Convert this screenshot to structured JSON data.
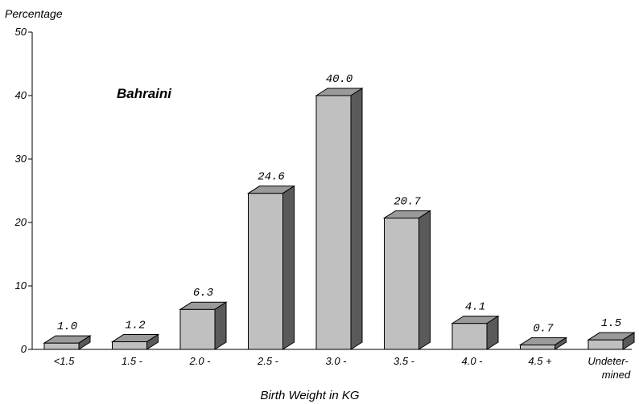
{
  "chart_data": {
    "type": "bar",
    "title": "",
    "annotation": "Bahraini",
    "ylabel": "Percentage",
    "xlabel": "Birth Weight in KG",
    "ylim": [
      0,
      50
    ],
    "yticks": [
      "0",
      "10",
      "20",
      "30",
      "40",
      "50"
    ],
    "categories": [
      "<1.5",
      "1.5 -",
      "2.0 -",
      "2.5 -",
      "3.0 -",
      "3.5 -",
      "4.0 -",
      "4.5 +",
      "Undeter-\nmined"
    ],
    "values": [
      1.0,
      1.2,
      6.3,
      24.6,
      40.0,
      20.7,
      4.1,
      0.7,
      1.5
    ],
    "data_labels": [
      "1.0",
      "1.2",
      "6.3",
      "24.6",
      "40.0",
      "20.7",
      "4.1",
      "0.7",
      "1.5"
    ],
    "grid": false,
    "style": "3d-bars",
    "colors": {
      "front": "#c0c0c0",
      "top": "#9a9a9a",
      "side": "#5a5a5a",
      "stroke": "#000000"
    }
  }
}
